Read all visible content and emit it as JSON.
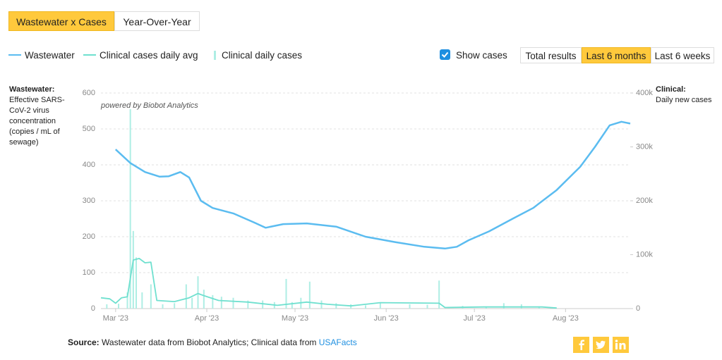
{
  "tabs": [
    "Wastewater x Cases",
    "Year-Over-Year"
  ],
  "show_cases": "Show cases",
  "range_buttons": [
    "Total results",
    "Last 6 months",
    "Last 6 weeks"
  ],
  "powered_by": "powered by Biobot Analytics",
  "source": {
    "label": "Source:",
    "text": "Wastewater data from Biobot Analytics; Clinical data from",
    "link": "USAFacts"
  },
  "chart_data": {
    "type": "line",
    "y_axis_label": {
      "title": "Wastewater:",
      "text": "Effective SARS-CoV-2 virus concentration (copies / mL of sewage)"
    },
    "y2_axis_label": {
      "title": "Clinical:",
      "text": "Daily new cases"
    },
    "xlim": [
      -5,
      175
    ],
    "xticks": [
      {
        "value": 0,
        "label": "Mar '23"
      },
      {
        "value": 31,
        "label": "Apr '23"
      },
      {
        "value": 61,
        "label": "May '23"
      },
      {
        "value": 92,
        "label": "Jun '23"
      },
      {
        "value": 122,
        "label": "Jul '23"
      },
      {
        "value": 153,
        "label": "Aug '23"
      }
    ],
    "ylim": [
      0,
      600
    ],
    "yticks": [
      0,
      100,
      200,
      300,
      400,
      500,
      600
    ],
    "y2lim": [
      0,
      400000
    ],
    "y2ticks": [
      {
        "value": 0,
        "label": "0"
      },
      {
        "value": 100000,
        "label": "100k"
      },
      {
        "value": 200000,
        "label": "200k"
      },
      {
        "value": 300000,
        "label": "300k"
      },
      {
        "value": 400000,
        "label": "400k"
      }
    ],
    "grid": true,
    "series": [
      {
        "name": "Wastewater",
        "type": "line",
        "color": "#5bbcf0",
        "x": [
          0,
          5,
          10,
          15,
          18,
          22,
          25,
          29,
          33,
          40,
          47,
          51,
          57,
          65,
          75,
          85,
          95,
          105,
          112,
          116,
          120,
          127,
          135,
          142,
          150,
          158,
          163,
          168,
          172,
          175
        ],
        "values": [
          443,
          405,
          380,
          367,
          368,
          380,
          365,
          300,
          280,
          265,
          240,
          225,
          235,
          237,
          228,
          200,
          185,
          172,
          167,
          172,
          190,
          215,
          250,
          280,
          330,
          395,
          450,
          510,
          520,
          515
        ]
      },
      {
        "name": "Clinical cases daily avg",
        "type": "line",
        "axis": "y2",
        "color": "#6fe0cf",
        "x": [
          -5,
          -2,
          0,
          2,
          4,
          6,
          8,
          10,
          12,
          14,
          20,
          25,
          28,
          30,
          35,
          45,
          55,
          65,
          72,
          80,
          90,
          110,
          112,
          125,
          145,
          150
        ],
        "values": [
          20000,
          18000,
          10000,
          20000,
          22000,
          90000,
          93000,
          85000,
          86000,
          15000,
          13000,
          20000,
          28000,
          24000,
          15000,
          12000,
          6000,
          12000,
          8000,
          5000,
          11000,
          10000,
          2000,
          3000,
          3000,
          1000
        ]
      },
      {
        "name": "Clinical daily cases",
        "type": "bar",
        "axis": "y2",
        "color": "#aeeee4",
        "x": [
          -3,
          1,
          4,
          5,
          6,
          7,
          9,
          12,
          16,
          20,
          24,
          26,
          28,
          30,
          33,
          36,
          40,
          45,
          50,
          54,
          58,
          60,
          63,
          66,
          70,
          75,
          80,
          85,
          90,
          100,
          106,
          110,
          118,
          126,
          132,
          138,
          144
        ],
        "values": [
          8000,
          9000,
          30000,
          370000,
          144000,
          95000,
          30000,
          45000,
          8000,
          10000,
          45000,
          20000,
          60000,
          35000,
          25000,
          22000,
          20000,
          15000,
          15000,
          12000,
          55000,
          12000,
          20000,
          50000,
          15000,
          10000,
          8000,
          6000,
          10000,
          8000,
          7000,
          52000,
          5000,
          4000,
          10000,
          8000,
          4000
        ]
      }
    ]
  }
}
